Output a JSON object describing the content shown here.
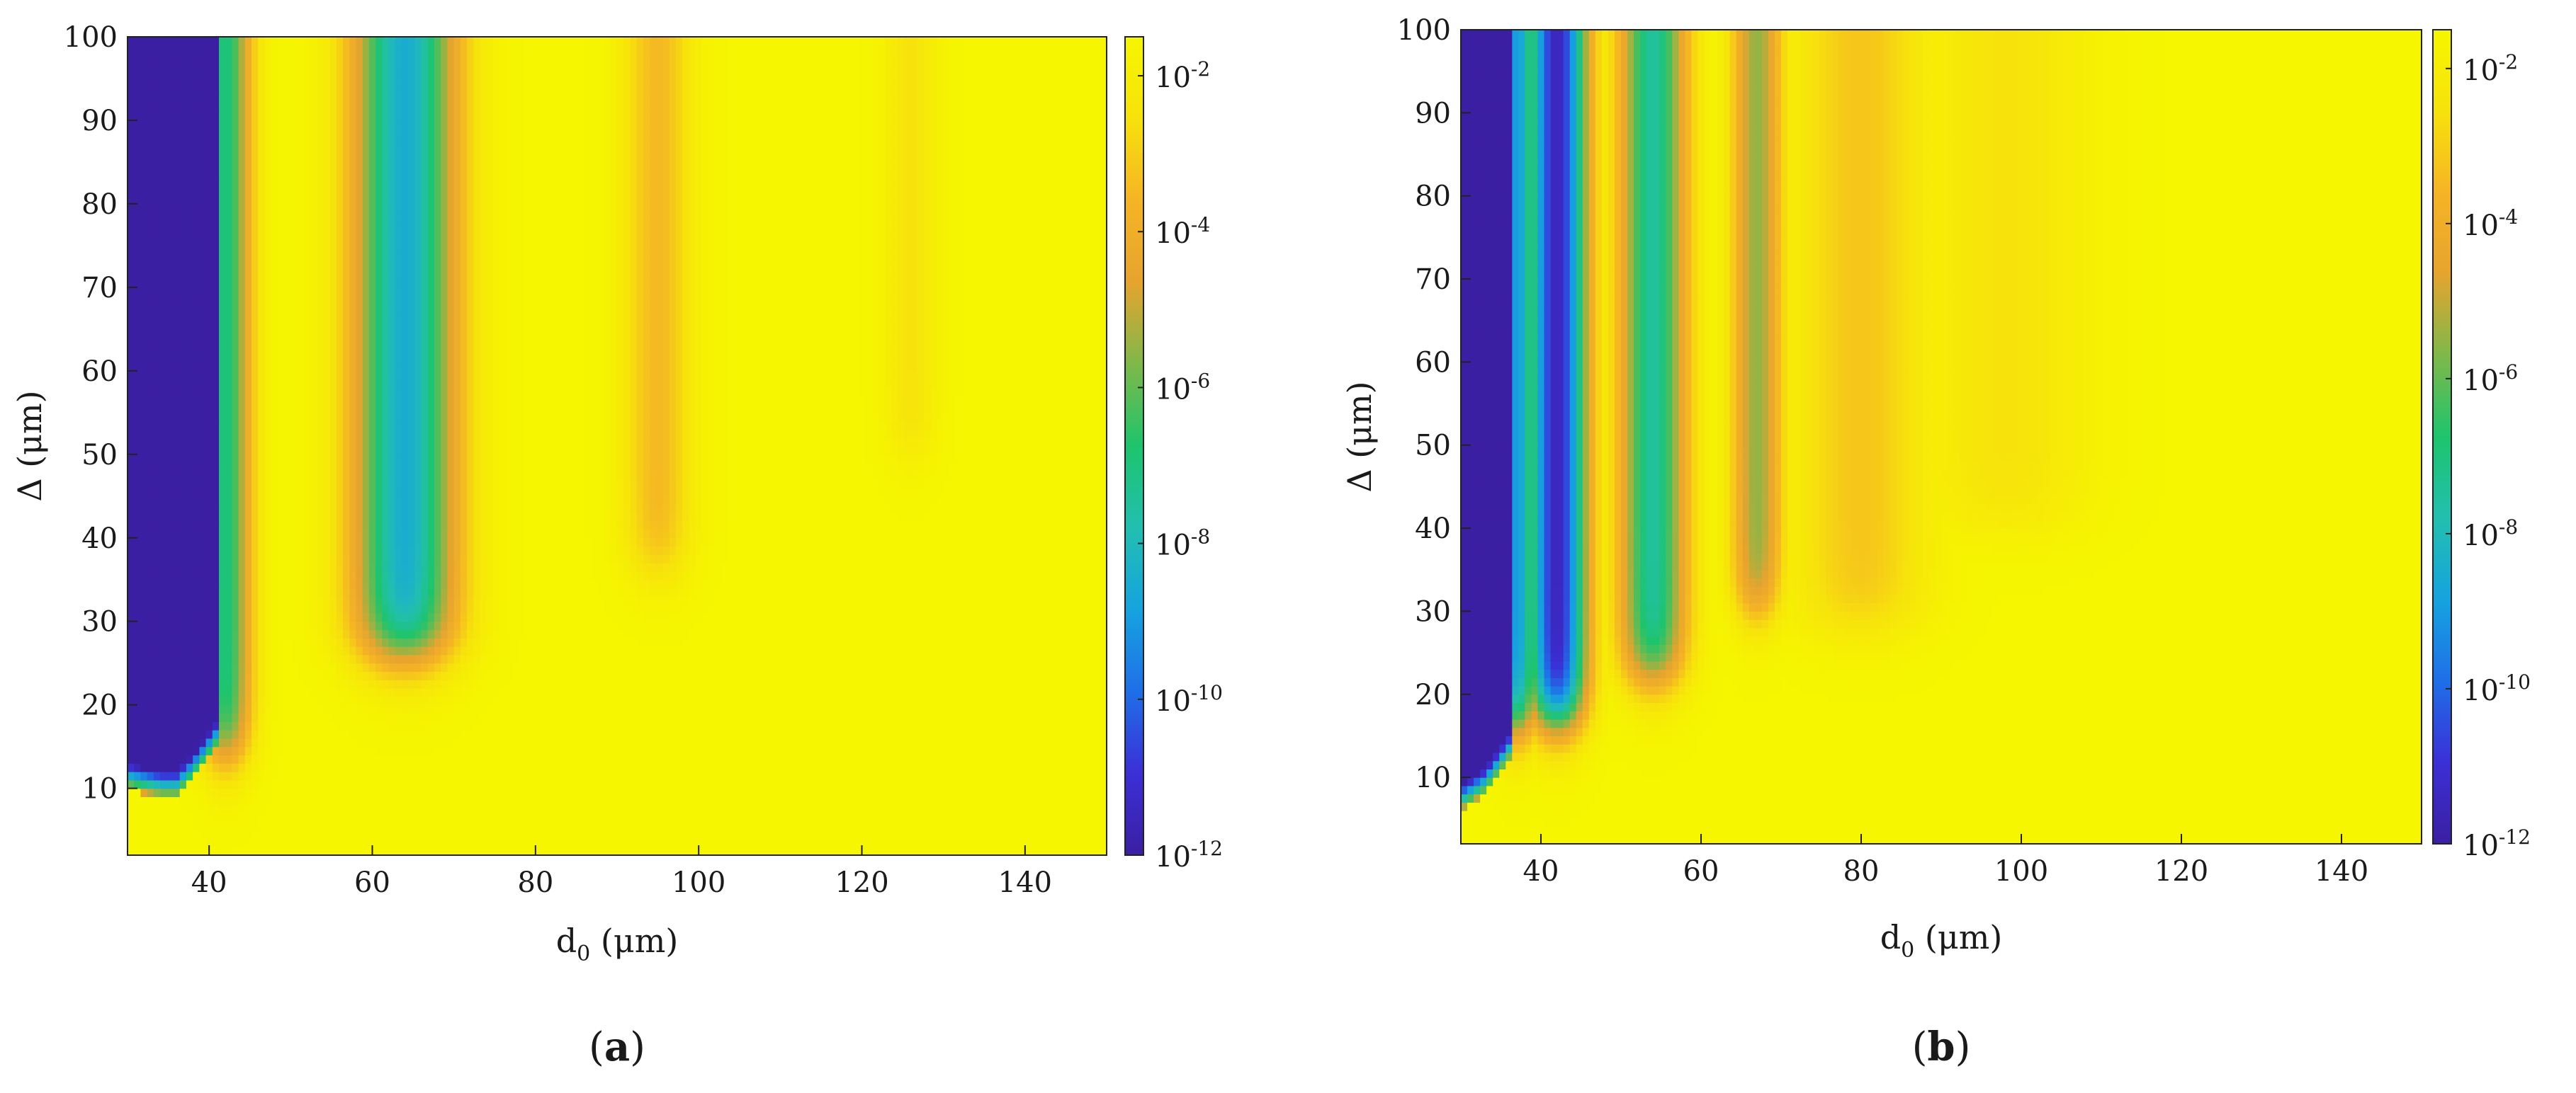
{
  "chart_data": [
    {
      "type": "heatmap",
      "panel_label": "a",
      "xlabel_main": "d",
      "xlabel_sub": "0",
      "xlabel_unit": " (μm)",
      "ylabel": "Δ (μm)",
      "xlim": [
        30,
        150
      ],
      "ylim": [
        2,
        100
      ],
      "xticks": [
        "40",
        "60",
        "80",
        "100",
        "120",
        "140"
      ],
      "yticks": [
        "10",
        "20",
        "30",
        "40",
        "50",
        "60",
        "70",
        "80",
        "90",
        "100"
      ],
      "colorbar": {
        "scale": "log",
        "range_exponent": [
          -12,
          -1.5
        ],
        "tick_base": "10",
        "tick_exponents": [
          "-2",
          "-4",
          "-6",
          "-8",
          "-10",
          "-12"
        ]
      },
      "grid": false,
      "log10_value_field": {
        "background": -1.5,
        "low_region": {
          "x": [
            30,
            41
          ],
          "y_from_edge": [
            [
              30,
              13
            ],
            [
              34,
              12
            ],
            [
              36,
              12
            ],
            [
              38,
              14
            ],
            [
              41,
              18
            ]
          ],
          "log10": -12
        },
        "troughs": [
          {
            "x_center": 64,
            "half_width": 6,
            "y_bottom": 26,
            "min_log10": -8.5
          },
          {
            "x_center": 42,
            "half_width": 3,
            "y_bottom": 14,
            "min_log10": -7
          },
          {
            "x_center": 95,
            "half_width": 4,
            "y_bottom": 36,
            "min_log10": -3.5
          },
          {
            "x_center": 126,
            "half_width": 3,
            "y_bottom": 50,
            "min_log10": -2.5
          }
        ]
      }
    },
    {
      "type": "heatmap",
      "panel_label": "b",
      "xlabel_main": "d",
      "xlabel_sub": "0",
      "xlabel_unit": " (μm)",
      "ylabel": "Δ (μm)",
      "xlim": [
        30,
        150
      ],
      "ylim": [
        2,
        100
      ],
      "xticks": [
        "40",
        "60",
        "80",
        "100",
        "120",
        "140"
      ],
      "yticks": [
        "10",
        "20",
        "30",
        "40",
        "50",
        "60",
        "70",
        "80",
        "90",
        "100"
      ],
      "colorbar": {
        "scale": "log",
        "range_exponent": [
          -12,
          -1.5
        ],
        "tick_base": "10",
        "tick_exponents": [
          "-2",
          "-4",
          "-6",
          "-8",
          "-10",
          "-12"
        ]
      },
      "grid": false,
      "log10_value_field": {
        "background": -1.5,
        "low_region": {
          "x": [
            30,
            36
          ],
          "y_from_edge": [
            [
              30,
              9
            ],
            [
              33,
              11
            ],
            [
              36,
              15
            ]
          ],
          "log10": -12
        },
        "troughs": [
          {
            "x_center": 37,
            "half_width": 2.5,
            "y_bottom": 16,
            "min_log10": -9
          },
          {
            "x_center": 42,
            "half_width": 3.5,
            "y_bottom": 17,
            "min_log10": -11.5
          },
          {
            "x_center": 54,
            "half_width": 4,
            "y_bottom": 22,
            "min_log10": -7.5
          },
          {
            "x_center": 67,
            "half_width": 3,
            "y_bottom": 30,
            "min_log10": -5.5
          },
          {
            "x_center": 80,
            "half_width": 8,
            "y_bottom": 28,
            "min_log10": -3.2
          },
          {
            "x_center": 98,
            "half_width": 10,
            "y_bottom": 40,
            "min_log10": -2.5
          }
        ]
      }
    }
  ],
  "colors": {
    "colormap_stops": [
      "#3b1fa3",
      "#3b2fd6",
      "#1f6fe8",
      "#16a3df",
      "#22bfb0",
      "#1ec46c",
      "#7fb84a",
      "#e6a42f",
      "#f5b425",
      "#f7e20c",
      "#f6f600"
    ]
  }
}
